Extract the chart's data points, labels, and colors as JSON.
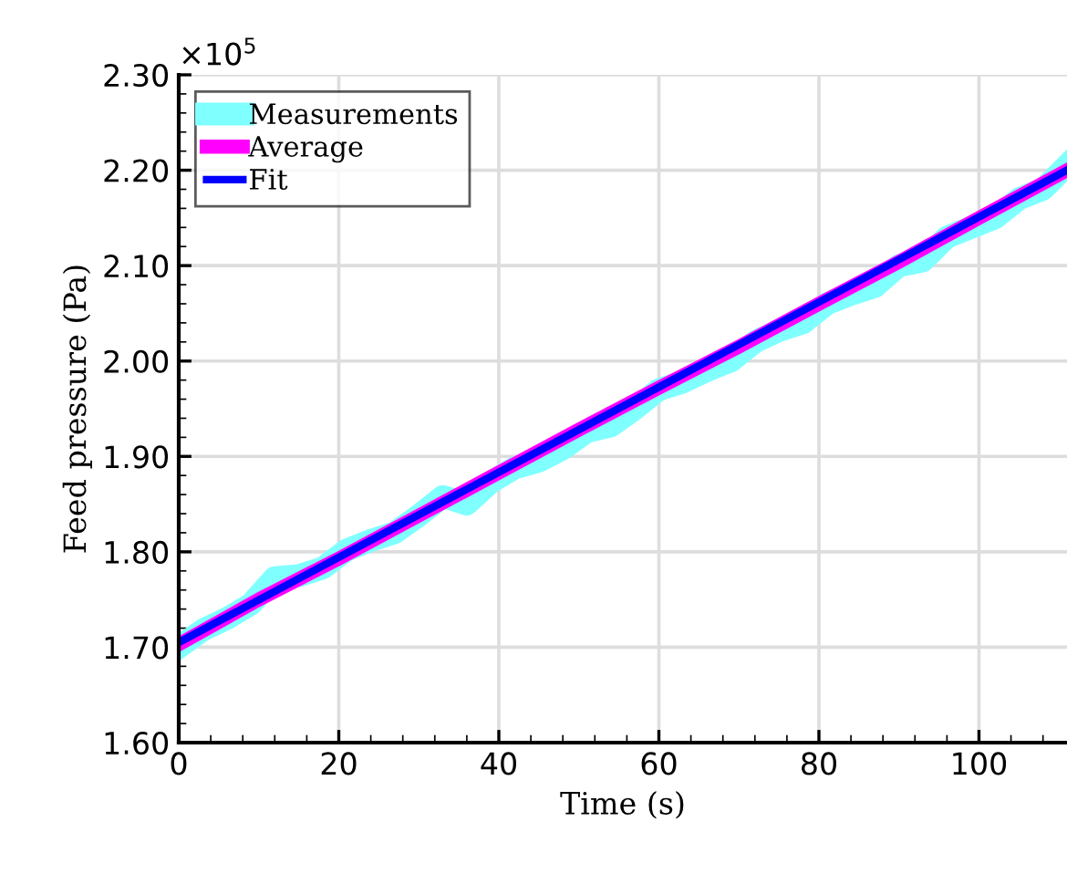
{
  "chart_data": {
    "type": "line",
    "xlabel": "Time (s)",
    "ylabel": "Feed pressure (Pa)",
    "annotations": [
      "×10$^{5}$"
    ],
    "xlim": [
      0,
      111
    ],
    "xticks": [
      0,
      20,
      40,
      60,
      80,
      100
    ],
    "ylim": [
      1.6,
      2.3
    ],
    "yticks": [
      {
        "value": 1.6,
        "label": "1.60"
      },
      {
        "value": 1.7,
        "label": "1.70"
      },
      {
        "value": 1.8,
        "label": "1.80"
      },
      {
        "value": 1.9,
        "label": "1.90"
      },
      {
        "value": 2.0,
        "label": "2.00"
      },
      {
        "value": 2.1,
        "label": "2.10"
      },
      {
        "value": 2.2,
        "label": "2.20"
      },
      {
        "value": 2.3,
        "label": "2.30"
      }
    ],
    "grid": true,
    "legend": "top left",
    "line_style": "solid",
    "marker": "none",
    "series": [
      {
        "name": "Measurements",
        "color": "#80ffff",
        "x": [
          0,
          3,
          6,
          9,
          12,
          15,
          18,
          21,
          24,
          27,
          30,
          33,
          36,
          39,
          42,
          45,
          48,
          51,
          54,
          57,
          60,
          63,
          66,
          69,
          72,
          75,
          78,
          81,
          84,
          87,
          90,
          93,
          96,
          99,
          102,
          105,
          108,
          111
        ],
        "values": [
          1.7,
          1.718,
          1.73,
          1.745,
          1.773,
          1.775,
          1.783,
          1.802,
          1.812,
          1.82,
          1.838,
          1.858,
          1.85,
          1.873,
          1.888,
          1.895,
          1.908,
          1.926,
          1.932,
          1.95,
          1.97,
          1.978,
          1.99,
          2.0,
          2.02,
          2.032,
          2.04,
          2.06,
          2.07,
          2.078,
          2.1,
          2.105,
          2.13,
          2.14,
          2.15,
          2.17,
          2.18,
          2.205
        ]
      },
      {
        "name": "Average",
        "color": "#ff00ff",
        "x": [
          0,
          10,
          20,
          30,
          40,
          50,
          60,
          70,
          80,
          90,
          100,
          111
        ],
        "values": [
          1.703,
          1.75,
          1.793,
          1.838,
          1.883,
          1.928,
          1.972,
          2.015,
          2.06,
          2.104,
          2.15,
          2.2
        ]
      },
      {
        "name": "Fit",
        "color": "#0000ff",
        "x": [
          0,
          111
        ],
        "values": [
          1.705,
          2.2
        ]
      }
    ]
  }
}
